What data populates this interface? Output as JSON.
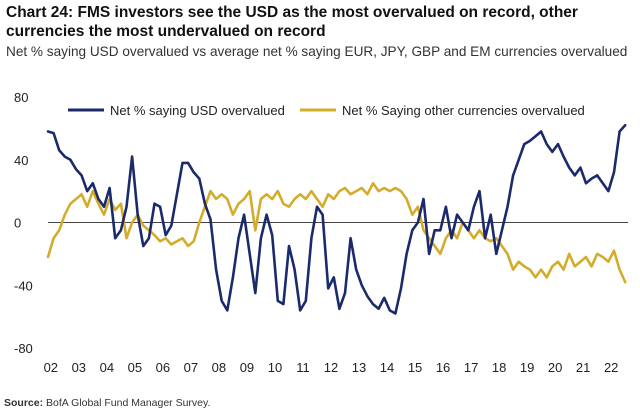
{
  "header": {
    "title": "Chart 24: FMS investors see the USD as the most overvalued on record, other currencies the most undervalued on record",
    "subtitle": "Net % saying USD overvalued vs average net % saying EUR, JPY, GBP and EM currencies overvalued"
  },
  "footer": {
    "source_label": "Source:",
    "source_text": " BofA Global Fund Manager Survey."
  },
  "colors": {
    "usd": "#1b2a6b",
    "other": "#d4ac2b",
    "zero_line": "#444444"
  },
  "chart_data": {
    "type": "line",
    "title": "Chart 24: FMS investors see the USD as the most overvalued on record, other currencies the most undervalued on record",
    "subtitle": "Net % saying USD overvalued vs average net % saying EUR, JPY, GBP and EM currencies overvalued",
    "xlabel": "",
    "ylabel": "",
    "xlim": [
      2002.0,
      2022.7
    ],
    "ylim": [
      -80,
      80
    ],
    "yticks": [
      80,
      40,
      0,
      -40,
      -80
    ],
    "xticks": [
      {
        "label": "02",
        "value": 2002.1
      },
      {
        "label": "03",
        "value": 2003.1
      },
      {
        "label": "04",
        "value": 2004.1
      },
      {
        "label": "05",
        "value": 2005.1
      },
      {
        "label": "06",
        "value": 2006.1
      },
      {
        "label": "07",
        "value": 2007.1
      },
      {
        "label": "08",
        "value": 2008.1
      },
      {
        "label": "09",
        "value": 2009.1
      },
      {
        "label": "10",
        "value": 2010.1
      },
      {
        "label": "11",
        "value": 2011.1
      },
      {
        "label": "12",
        "value": 2012.1
      },
      {
        "label": "13",
        "value": 2013.1
      },
      {
        "label": "14",
        "value": 2014.1
      },
      {
        "label": "15",
        "value": 2015.1
      },
      {
        "label": "16",
        "value": 2016.1
      },
      {
        "label": "17",
        "value": 2017.1
      },
      {
        "label": "18",
        "value": 2018.1
      },
      {
        "label": "19",
        "value": 2019.1
      },
      {
        "label": "20",
        "value": 2020.1
      },
      {
        "label": "21",
        "value": 2021.1
      },
      {
        "label": "22",
        "value": 2022.1
      }
    ],
    "legend_position": "top",
    "series": [
      {
        "name": "Net % saying USD overvalued",
        "color": "#1b2a6b",
        "x": [
          2002.0,
          2002.2,
          2002.4,
          2002.6,
          2002.8,
          2003.0,
          2003.2,
          2003.4,
          2003.6,
          2003.8,
          2004.0,
          2004.2,
          2004.4,
          2004.6,
          2004.8,
          2005.0,
          2005.2,
          2005.4,
          2005.6,
          2005.8,
          2006.0,
          2006.2,
          2006.4,
          2006.6,
          2006.8,
          2007.0,
          2007.2,
          2007.4,
          2007.6,
          2007.8,
          2008.0,
          2008.2,
          2008.4,
          2008.6,
          2008.8,
          2009.0,
          2009.2,
          2009.4,
          2009.6,
          2009.8,
          2010.0,
          2010.2,
          2010.4,
          2010.6,
          2010.8,
          2011.0,
          2011.2,
          2011.4,
          2011.6,
          2011.8,
          2012.0,
          2012.2,
          2012.4,
          2012.6,
          2012.8,
          2013.0,
          2013.2,
          2013.4,
          2013.6,
          2013.8,
          2014.0,
          2014.2,
          2014.4,
          2014.6,
          2014.8,
          2015.0,
          2015.2,
          2015.4,
          2015.6,
          2015.8,
          2016.0,
          2016.2,
          2016.4,
          2016.6,
          2016.8,
          2017.0,
          2017.2,
          2017.4,
          2017.6,
          2017.8,
          2018.0,
          2018.2,
          2018.4,
          2018.6,
          2018.8,
          2019.0,
          2019.2,
          2019.4,
          2019.6,
          2019.8,
          2020.0,
          2020.2,
          2020.4,
          2020.6,
          2020.8,
          2021.0,
          2021.2,
          2021.4,
          2021.6,
          2021.8,
          2022.0,
          2022.2,
          2022.4,
          2022.6
        ],
        "values": [
          58,
          57,
          46,
          42,
          40,
          34,
          30,
          20,
          25,
          15,
          10,
          22,
          -10,
          -5,
          10,
          42,
          5,
          -15,
          -10,
          12,
          10,
          -8,
          -2,
          18,
          38,
          38,
          32,
          28,
          12,
          2,
          -30,
          -50,
          -56,
          -35,
          -10,
          5,
          -20,
          -45,
          -10,
          5,
          -8,
          -50,
          -52,
          -15,
          -30,
          -56,
          -50,
          -10,
          10,
          5,
          -42,
          -35,
          -55,
          -45,
          -10,
          -30,
          -40,
          -47,
          -52,
          -55,
          -48,
          -56,
          -58,
          -42,
          -20,
          -5,
          0,
          15,
          -20,
          -5,
          -5,
          10,
          -10,
          5,
          0,
          -5,
          10,
          20,
          -10,
          5,
          -20,
          -5,
          10,
          30,
          40,
          50,
          52,
          55,
          58,
          50,
          45,
          50,
          42,
          35,
          30,
          35,
          25,
          28,
          30,
          25,
          20,
          32,
          58,
          62
        ]
      },
      {
        "name": "Net % Saying other currencies overvalued",
        "color": "#d4ac2b",
        "x": [
          2002.0,
          2002.2,
          2002.4,
          2002.6,
          2002.8,
          2003.0,
          2003.2,
          2003.4,
          2003.6,
          2003.8,
          2004.0,
          2004.2,
          2004.4,
          2004.6,
          2004.8,
          2005.0,
          2005.2,
          2005.4,
          2005.6,
          2005.8,
          2006.0,
          2006.2,
          2006.4,
          2006.6,
          2006.8,
          2007.0,
          2007.2,
          2007.4,
          2007.6,
          2007.8,
          2008.0,
          2008.2,
          2008.4,
          2008.6,
          2008.8,
          2009.0,
          2009.2,
          2009.4,
          2009.6,
          2009.8,
          2010.0,
          2010.2,
          2010.4,
          2010.6,
          2010.8,
          2011.0,
          2011.2,
          2011.4,
          2011.6,
          2011.8,
          2012.0,
          2012.2,
          2012.4,
          2012.6,
          2012.8,
          2013.0,
          2013.2,
          2013.4,
          2013.6,
          2013.8,
          2014.0,
          2014.2,
          2014.4,
          2014.6,
          2014.8,
          2015.0,
          2015.2,
          2015.4,
          2015.6,
          2015.8,
          2016.0,
          2016.2,
          2016.4,
          2016.6,
          2016.8,
          2017.0,
          2017.2,
          2017.4,
          2017.6,
          2017.8,
          2018.0,
          2018.2,
          2018.4,
          2018.6,
          2018.8,
          2019.0,
          2019.2,
          2019.4,
          2019.6,
          2019.8,
          2020.0,
          2020.2,
          2020.4,
          2020.6,
          2020.8,
          2021.0,
          2021.2,
          2021.4,
          2021.6,
          2021.8,
          2022.0,
          2022.2,
          2022.4,
          2022.6
        ],
        "values": [
          -22,
          -10,
          -5,
          5,
          12,
          15,
          18,
          10,
          20,
          12,
          5,
          15,
          8,
          12,
          -10,
          0,
          5,
          -2,
          -5,
          -8,
          -12,
          -10,
          -14,
          -12,
          -10,
          -15,
          -12,
          0,
          10,
          20,
          15,
          18,
          15,
          5,
          12,
          15,
          20,
          -5,
          15,
          18,
          15,
          20,
          12,
          10,
          15,
          18,
          15,
          20,
          15,
          10,
          18,
          15,
          20,
          22,
          18,
          20,
          22,
          18,
          25,
          20,
          22,
          20,
          22,
          20,
          15,
          5,
          10,
          -5,
          -10,
          -15,
          -20,
          -10,
          -5,
          -10,
          0,
          -5,
          -10,
          -5,
          -10,
          -12,
          -10,
          -15,
          -20,
          -30,
          -25,
          -28,
          -30,
          -35,
          -30,
          -35,
          -28,
          -25,
          -30,
          -20,
          -28,
          -25,
          -22,
          -28,
          -20,
          -22,
          -25,
          -18,
          -30,
          -38
        ]
      }
    ]
  }
}
